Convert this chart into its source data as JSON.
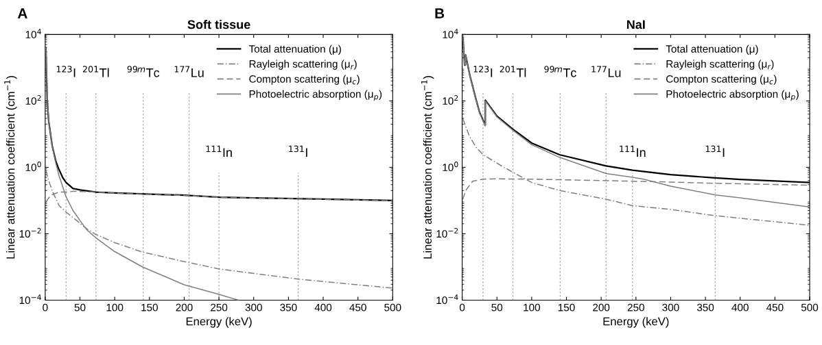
{
  "chart_data": [
    {
      "type": "line",
      "title": "Soft tissue",
      "xlabel": "Energy (keV)",
      "ylabel": "Linear attenuation coefficient (cm$^{−1}$)",
      "annotations": [
        "A"
      ],
      "xlim": [
        0,
        500
      ],
      "xticks": [
        0,
        50,
        100,
        150,
        200,
        250,
        300,
        350,
        400,
        450,
        500
      ],
      "ylim": [
        0.0001,
        10000
      ],
      "yticks": [
        {
          "value": 0.0001,
          "label": "10$^{−4}$"
        },
        {
          "value": 0.01,
          "label": "10$^{−2}$"
        },
        {
          "value": 1,
          "label": "10$^{0}$"
        },
        {
          "value": 100,
          "label": "10$^{2}$"
        },
        {
          "value": 10000,
          "label": "10$^{4}$"
        }
      ],
      "log": "y",
      "legend": "top right",
      "grid": false,
      "series": [
        {
          "name": "Total attenuation (μ)",
          "color": "#000000",
          "line_style": "solid",
          "x": [
            1,
            2,
            3,
            5,
            10,
            15,
            18.5,
            25,
            30,
            40,
            50,
            73,
            100,
            150,
            200,
            250,
            300,
            400,
            500
          ],
          "values": [
            4000,
            600,
            100,
            25,
            4.5,
            1.6,
            1,
            0.5,
            0.35,
            0.23,
            0.21,
            0.18,
            0.17,
            0.155,
            0.145,
            0.126,
            0.12,
            0.11,
            0.1
          ]
        },
        {
          "name": "Rayleigh scattering (μ$_{r}$)",
          "color": "#808080",
          "line_style": "dashdot",
          "x": [
            1,
            5,
            10,
            20,
            30,
            60,
            73,
            100,
            140,
            200,
            250,
            364,
            500
          ],
          "values": [
            0.8,
            0.4,
            0.2,
            0.07,
            0.045,
            0.014,
            0.0095,
            0.0054,
            0.0028,
            0.00145,
            0.00087,
            0.00043,
            0.00023
          ]
        },
        {
          "name": "Compton scattering (μ$_{c}$)",
          "color": "#808080",
          "line_style": "dashed",
          "x": [
            1,
            5,
            10,
            20,
            30,
            40,
            73,
            100,
            150,
            200,
            250,
            300,
            400,
            500
          ],
          "values": [
            0.09,
            0.12,
            0.15,
            0.18,
            0.18,
            0.19,
            0.18,
            0.168,
            0.153,
            0.143,
            0.125,
            0.119,
            0.109,
            0.099
          ]
        },
        {
          "name": "Photoelectric absorption (μ$_{p}$)",
          "color": "#808080",
          "line_style": "solid",
          "x": [
            1,
            3,
            5,
            10,
            15,
            20,
            30,
            40,
            50,
            60,
            73,
            100,
            140,
            200,
            250,
            278
          ],
          "values": [
            4000,
            150,
            25,
            4.3,
            1.4,
            0.55,
            0.13,
            0.05,
            0.025,
            0.013,
            0.0075,
            0.0029,
            0.001,
            0.00029,
            0.00015,
            0.0001
          ]
        }
      ],
      "ref_lines": [
        {
          "axis": "x",
          "value": 30,
          "label": "$^{123}$I",
          "color": "#aaaaaa",
          "line_style": "dotted"
        },
        {
          "axis": "x",
          "value": 73,
          "label": "$^{201}$Tl",
          "color": "#aaaaaa",
          "line_style": "dotted"
        },
        {
          "axis": "x",
          "value": 141,
          "label": "$^{99m}$Tc",
          "color": "#aaaaaa",
          "line_style": "dotted"
        },
        {
          "axis": "x",
          "value": 207,
          "label": "$^{177}$Lu",
          "color": "#aaaaaa",
          "line_style": "dotted"
        },
        {
          "axis": "x",
          "value": 250,
          "label": "$^{111}$In",
          "color": "#aaaaaa",
          "line_style": "dotted"
        },
        {
          "axis": "x",
          "value": 364,
          "label": "$^{131}$I",
          "color": "#aaaaaa",
          "line_style": "dotted"
        }
      ]
    },
    {
      "type": "line",
      "title": "NaI",
      "xlabel": "Energy (keV)",
      "ylabel": "Linear attenuation coefficient (cm$^{−1}$)",
      "annotations": [
        "B"
      ],
      "xlim": [
        0,
        500
      ],
      "xticks": [
        0,
        50,
        100,
        150,
        200,
        250,
        300,
        350,
        400,
        450,
        500
      ],
      "ylim": [
        0.0001,
        10000
      ],
      "yticks": [
        {
          "value": 0.0001,
          "label": "10$^{−4}$"
        },
        {
          "value": 0.01,
          "label": "10$^{−2}$"
        },
        {
          "value": 1,
          "label": "10$^{0}$"
        },
        {
          "value": 100,
          "label": "10$^{2}$"
        },
        {
          "value": 10000,
          "label": "10$^{4}$"
        }
      ],
      "log": "y",
      "legend": "top right",
      "grid": false,
      "series": [
        {
          "name": "Total attenuation (μ)",
          "color": "#000000",
          "line_style": "solid",
          "x": [
            1,
            3.5,
            4.5,
            5,
            11,
            19,
            25,
            33.2,
            33.3,
            50,
            73,
            100,
            140,
            207,
            245,
            300,
            364,
            400,
            500
          ],
          "values": [
            8000,
            1200,
            1200,
            2400,
            590,
            130,
            45,
            18.6,
            105,
            35,
            14,
            5.4,
            2.4,
            1.1,
            0.82,
            0.6,
            0.48,
            0.43,
            0.35
          ]
        },
        {
          "name": "Rayleigh scattering (μ$_{r}$)",
          "color": "#808080",
          "line_style": "dashdot",
          "x": [
            1,
            10,
            20,
            30,
            60,
            100,
            140,
            207,
            245,
            300,
            364,
            500
          ],
          "values": [
            29,
            9,
            4,
            2.4,
            1,
            0.35,
            0.2,
            0.11,
            0.07,
            0.054,
            0.035,
            0.018
          ]
        },
        {
          "name": "Compton scattering (μ$_{c}$)",
          "color": "#808080",
          "line_style": "dashed",
          "x": [
            1,
            5,
            15,
            30,
            50,
            100,
            200,
            300,
            364,
            500
          ],
          "values": [
            0.11,
            0.2,
            0.38,
            0.44,
            0.45,
            0.44,
            0.4,
            0.36,
            0.33,
            0.29
          ]
        },
        {
          "name": "Photoelectric absorption (μ$_{p}$)",
          "color": "#808080",
          "line_style": "solid",
          "x": [
            1,
            3.5,
            4.5,
            5,
            11,
            19,
            25,
            33.2,
            33.3,
            50,
            73,
            100,
            140,
            207,
            245,
            261,
            300,
            364,
            400,
            500
          ],
          "values": [
            8000,
            1200,
            1200,
            2400,
            580,
            125,
            43,
            17.5,
            100,
            33,
            13,
            4.8,
            2.0,
            0.65,
            0.5,
            0.44,
            0.27,
            0.148,
            0.12,
            0.064
          ]
        }
      ],
      "ref_lines": [
        {
          "axis": "x",
          "value": 30,
          "label": "$^{123}$I",
          "color": "#aaaaaa",
          "line_style": "dotted"
        },
        {
          "axis": "x",
          "value": 73,
          "label": "$^{201}$Tl",
          "color": "#aaaaaa",
          "line_style": "dotted"
        },
        {
          "axis": "x",
          "value": 141,
          "label": "$^{99m}$Tc",
          "color": "#aaaaaa",
          "line_style": "dotted"
        },
        {
          "axis": "x",
          "value": 207,
          "label": "$^{177}$Lu",
          "color": "#aaaaaa",
          "line_style": "dotted"
        },
        {
          "axis": "x",
          "value": 245,
          "label": "$^{111}$In",
          "color": "#aaaaaa",
          "line_style": "dotted"
        },
        {
          "axis": "x",
          "value": 364,
          "label": "$^{131}$I",
          "color": "#aaaaaa",
          "line_style": "dotted"
        }
      ]
    }
  ]
}
